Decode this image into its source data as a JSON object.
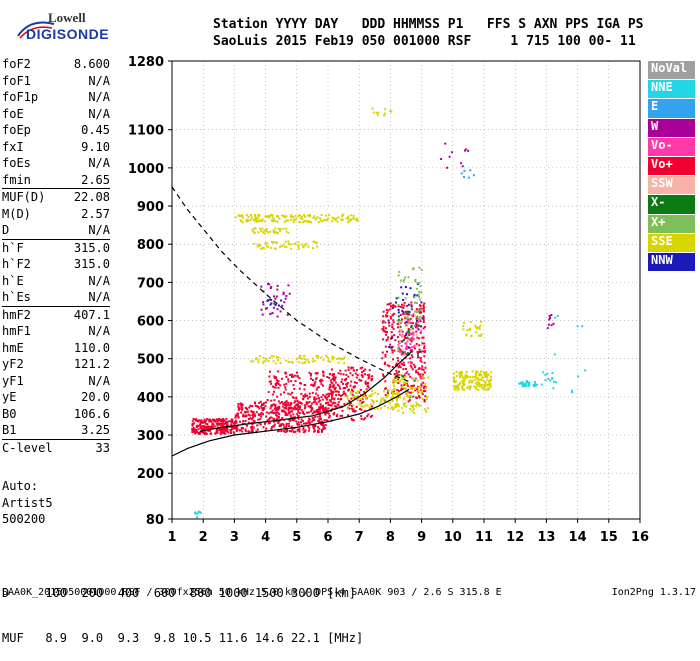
{
  "logo": {
    "line1": "Lowell",
    "line2": "DIGISONDE"
  },
  "header": {
    "line1": "Station YYYY DAY   DDD HHMMSS P1   FFS S AXN PPS IGA PS",
    "line2": "SaoLuis 2015 Feb19 050 001000 RSF     1 715 100 00- 11"
  },
  "params": [
    {
      "k": "foF2",
      "v": "8.600"
    },
    {
      "k": "foF1",
      "v": "N/A"
    },
    {
      "k": "foF1p",
      "v": "N/A"
    },
    {
      "k": "foE",
      "v": "N/A"
    },
    {
      "k": "foEp",
      "v": "0.45"
    },
    {
      "k": "fxI",
      "v": "9.10"
    },
    {
      "k": "foEs",
      "v": "N/A"
    },
    {
      "k": "fmin",
      "v": "2.65"
    },
    {
      "k": "MUF(D)",
      "v": "22.08",
      "sep": true
    },
    {
      "k": "M(D)",
      "v": "2.57"
    },
    {
      "k": "D",
      "v": "N/A"
    },
    {
      "k": "h`F",
      "v": "315.0",
      "sep": true
    },
    {
      "k": "h`F2",
      "v": "315.0"
    },
    {
      "k": "h`E",
      "v": "N/A"
    },
    {
      "k": "h`Es",
      "v": "N/A"
    },
    {
      "k": "hmF2",
      "v": "407.1",
      "sep": true
    },
    {
      "k": "hmF1",
      "v": "N/A"
    },
    {
      "k": "hmE",
      "v": "110.0"
    },
    {
      "k": "yF2",
      "v": "121.2"
    },
    {
      "k": "yF1",
      "v": "N/A"
    },
    {
      "k": "yE",
      "v": "20.0"
    },
    {
      "k": "B0",
      "v": "106.6"
    },
    {
      "k": "B1",
      "v": "3.25"
    },
    {
      "k": "C-level",
      "v": "33",
      "sep": true
    }
  ],
  "auto": {
    "l1": "Auto:",
    "l2": "Artist5",
    "l3": "500200"
  },
  "legend": [
    {
      "label": "NoVal",
      "color": "#a0a0a0"
    },
    {
      "label": "NNE",
      "color": "#22d6e8"
    },
    {
      "label": "E",
      "color": "#33a3f0"
    },
    {
      "label": "W",
      "color": "#a80098"
    },
    {
      "label": "Vo-",
      "color": "#ff3aa8"
    },
    {
      "label": "Vo+",
      "color": "#f00030"
    },
    {
      "label": "SSW",
      "color": "#f7b3a5"
    },
    {
      "label": "X-",
      "color": "#0b7a12"
    },
    {
      "label": "X+",
      "color": "#7fbf5a"
    },
    {
      "label": "SSE",
      "color": "#d8d400"
    },
    {
      "label": "NNW",
      "color": "#1a1ab8"
    }
  ],
  "dtable": {
    "row1": "D     100  200  400  600  800 1000 1500 3000 [km]",
    "row2": "MUF   8.9  9.0  9.3  9.8 10.5 11.6 14.6 22.1 [MHz]"
  },
  "footer": "SAA0K_2015050001000.RSF / 300fx256h 50 kHz 5.0 km / DPS-4 SAA0K 903 / 2.6 S 315.8 E",
  "version": "Ion2Png 1.3.17",
  "chart_data": {
    "type": "scatter",
    "title": "",
    "xlabel": "",
    "ylabel": "",
    "xlim": [
      1,
      16
    ],
    "ylim": [
      80,
      1280
    ],
    "xticks": [
      1,
      2,
      3,
      4,
      5,
      6,
      7,
      8,
      9,
      10,
      11,
      12,
      13,
      14,
      15,
      16
    ],
    "yticks": [
      80,
      200,
      300,
      400,
      500,
      600,
      700,
      800,
      900,
      1000,
      1100,
      1280
    ],
    "series": [
      {
        "name": "Vo+",
        "color": "#f00030",
        "clusters": [
          {
            "x": [
              1.6,
              3.0
            ],
            "y": [
              305,
              345
            ],
            "n": 240
          },
          {
            "x": [
              3.0,
              6.0
            ],
            "y": [
              310,
              390
            ],
            "n": 420
          },
          {
            "x": [
              4.0,
              6.2
            ],
            "y": [
              360,
              470
            ],
            "n": 220
          },
          {
            "x": [
              6.0,
              7.4
            ],
            "y": [
              340,
              480
            ],
            "n": 200
          },
          {
            "x": [
              7.7,
              9.1
            ],
            "y": [
              390,
              650
            ],
            "n": 320
          }
        ]
      },
      {
        "name": "Vo-",
        "color": "#ff3aa8",
        "clusters": [
          {
            "x": [
              8.2,
              9.0
            ],
            "y": [
              450,
              620
            ],
            "n": 60
          }
        ]
      },
      {
        "name": "SSE",
        "color": "#d8d400",
        "clusters": [
          {
            "x": [
              3.0,
              7.0
            ],
            "y": [
              860,
              880
            ],
            "n": 150
          },
          {
            "x": [
              3.5,
              4.7
            ],
            "y": [
              830,
              845
            ],
            "n": 30
          },
          {
            "x": [
              3.6,
              5.7
            ],
            "y": [
              790,
              810
            ],
            "n": 50
          },
          {
            "x": [
              3.5,
              6.5
            ],
            "y": [
              490,
              510
            ],
            "n": 70
          },
          {
            "x": [
              6.5,
              8.2
            ],
            "y": [
              370,
              420
            ],
            "n": 80
          },
          {
            "x": [
              8.0,
              9.2
            ],
            "y": [
              360,
              460
            ],
            "n": 100
          },
          {
            "x": [
              10.0,
              11.2
            ],
            "y": [
              420,
              470
            ],
            "n": 160
          },
          {
            "x": [
              10.3,
              10.9
            ],
            "y": [
              560,
              600
            ],
            "n": 25
          },
          {
            "x": [
              7.3,
              8.0
            ],
            "y": [
              1140,
              1160
            ],
            "n": 10
          }
        ]
      },
      {
        "name": "NNE",
        "color": "#22d6e8",
        "clusters": [
          {
            "x": [
              12.1,
              12.7
            ],
            "y": [
              430,
              445
            ],
            "n": 30
          },
          {
            "x": [
              12.8,
              13.3
            ],
            "y": [
              435,
              470
            ],
            "n": 12
          },
          {
            "x": [
              13.0,
              14.3
            ],
            "y": [
              410,
              640
            ],
            "n": 10
          },
          {
            "x": [
              1.7,
              1.9
            ],
            "y": [
              85,
              110
            ],
            "n": 8
          }
        ]
      },
      {
        "name": "E",
        "color": "#33a3f0",
        "clusters": [
          {
            "x": [
              10.2,
              10.9
            ],
            "y": [
              970,
              1000
            ],
            "n": 6
          }
        ]
      },
      {
        "name": "W",
        "color": "#a80098",
        "clusters": [
          {
            "x": [
              3.8,
              4.8
            ],
            "y": [
              610,
              700
            ],
            "n": 35
          },
          {
            "x": [
              9.5,
              10.5
            ],
            "y": [
              1000,
              1080
            ],
            "n": 10
          },
          {
            "x": [
              13.0,
              13.2
            ],
            "y": [
              560,
              620
            ],
            "n": 8
          }
        ]
      },
      {
        "name": "NNW",
        "color": "#1a1ab8",
        "clusters": [
          {
            "x": [
              7.9,
              9.0
            ],
            "y": [
              520,
              700
            ],
            "n": 35
          },
          {
            "x": [
              4.0,
              4.5
            ],
            "y": [
              640,
              670
            ],
            "n": 8
          }
        ]
      },
      {
        "name": "X+",
        "color": "#7fbf5a",
        "clusters": [
          {
            "x": [
              8.2,
              9.0
            ],
            "y": [
              600,
              750
            ],
            "n": 40
          }
        ]
      },
      {
        "name": "X-",
        "color": "#0b7a12",
        "clusters": [
          {
            "x": [
              8.2,
              8.9
            ],
            "y": [
              440,
              640
            ],
            "n": 25
          }
        ]
      },
      {
        "name": "SSW",
        "color": "#f7b3a5",
        "clusters": [
          {
            "x": [
              8.2,
              8.9
            ],
            "y": [
              500,
              600
            ],
            "n": 15
          }
        ]
      }
    ],
    "curves": [
      {
        "style": "dashed",
        "x": [
          1.0,
          1.5,
          2.0,
          2.6,
          3.2,
          4.0,
          5.0,
          6.0,
          7.0,
          8.0,
          8.6
        ],
        "y": [
          950,
          890,
          840,
          780,
          730,
          670,
          600,
          545,
          500,
          460,
          440
        ]
      },
      {
        "style": "solid",
        "x": [
          1.0,
          1.5,
          2.2,
          3.0,
          4.0,
          5.0,
          6.0,
          7.0,
          7.6,
          8.2,
          8.6
        ],
        "y": [
          245,
          265,
          285,
          300,
          310,
          320,
          335,
          355,
          375,
          400,
          420
        ]
      },
      {
        "style": "solid",
        "x": [
          1.9,
          2.6,
          3.5,
          4.5,
          5.5,
          6.5,
          7.2,
          7.8,
          8.3,
          8.7
        ],
        "y": [
          310,
          320,
          330,
          340,
          350,
          375,
          410,
          450,
          490,
          520
        ]
      }
    ]
  }
}
